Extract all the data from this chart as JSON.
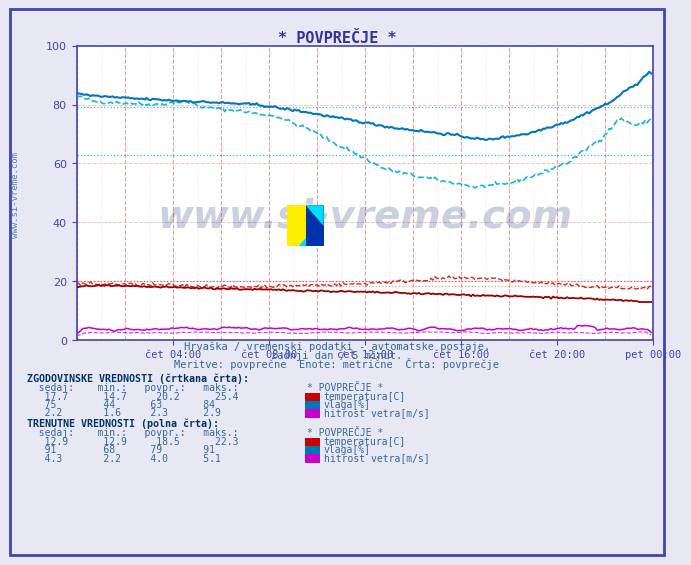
{
  "title": "* POVPREČJE *",
  "background_color": "#e8e8f4",
  "plot_bg_color": "#ffffff",
  "ylim": [
    0,
    100
  ],
  "yticks": [
    0,
    20,
    40,
    60,
    80,
    100
  ],
  "subtitle1": "Hrvaška / vremenski podatki - avtomatske postaje.",
  "subtitle2": "zadnji dan / 5 minut.",
  "subtitle3": "Meritve: povprečne  Enote: metrične  Črta: povprečje",
  "watermark": "www.si-vreme.com",
  "colors": {
    "temp_hist": "#cc0000",
    "temp_curr": "#cc0000",
    "vlaga_hist": "#00aadd",
    "vlaga_curr": "#0077bb",
    "wind_hist": "#cc00cc",
    "wind_curr": "#cc00cc"
  },
  "hist": {
    "temp_now": 17.7,
    "temp_min": 14.7,
    "temp_avg": 20.2,
    "temp_max": 25.4,
    "vlaga_now": 75,
    "vlaga_min": 44,
    "vlaga_avg": 63,
    "vlaga_max": 84,
    "wind_now": 2.2,
    "wind_min": 1.6,
    "wind_avg": 2.3,
    "wind_max": 2.9
  },
  "curr": {
    "temp_now": 12.9,
    "temp_min": 12.9,
    "temp_avg": 18.5,
    "temp_max": 22.3,
    "vlaga_now": 91,
    "vlaga_min": 68,
    "vlaga_avg": 79,
    "vlaga_max": 91,
    "wind_now": 4.3,
    "wind_min": 2.2,
    "wind_avg": 4.0,
    "wind_max": 5.1
  },
  "xtick_labels": [
    "čet 04:00",
    "čet 08:00",
    "čet 12:00",
    "čet 16:00",
    "čet 20:00",
    "pet 00:00"
  ],
  "xtick_positions": [
    48,
    96,
    144,
    192,
    240,
    288
  ],
  "axis_color": "#4444aa",
  "grid_color_main": "#dd9999",
  "grid_color_sub": "#eebbbb",
  "hgrid_color": "#ddbbbb",
  "border_color": "#4444aa",
  "text_color": "#336699",
  "label_color": "#003366"
}
